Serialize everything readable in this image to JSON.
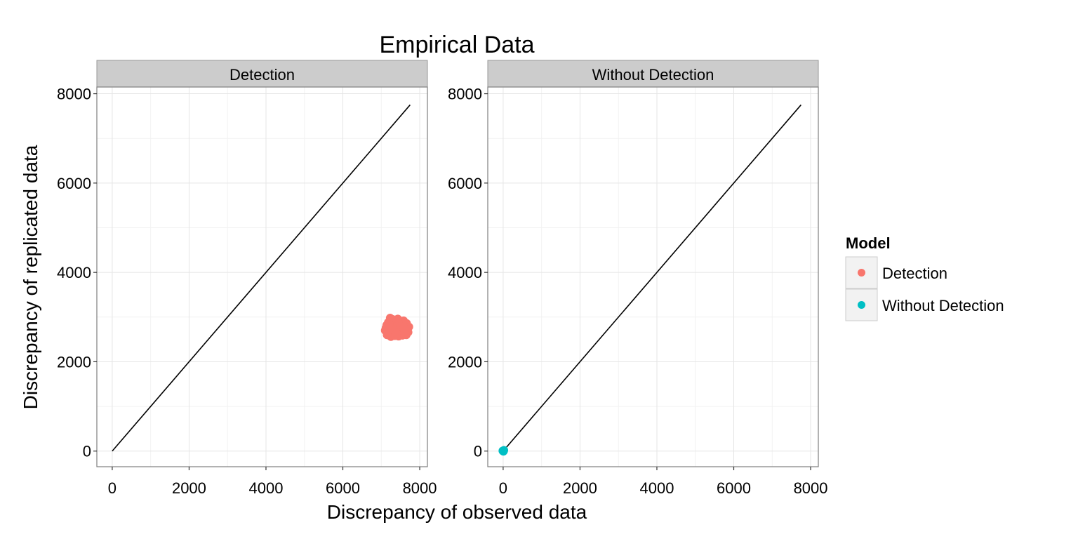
{
  "chart_data": {
    "type": "scatter",
    "title": "Empirical Data",
    "xlabel": "Discrepancy of observed data",
    "ylabel": "Discrepancy of replicated data",
    "xlim": [
      -400,
      8200
    ],
    "ylim": [
      -350,
      8150
    ],
    "xticks": [
      0,
      2000,
      4000,
      6000,
      8000
    ],
    "yticks": [
      0,
      2000,
      4000,
      6000,
      8000
    ],
    "grid": true,
    "legend": {
      "title": "Model",
      "position": "right",
      "entries": [
        {
          "label": "Detection",
          "color": "#F8766D"
        },
        {
          "label": "Without Detection",
          "color": "#00BFC4"
        }
      ]
    },
    "reference_line": {
      "x": [
        0,
        7750
      ],
      "y": [
        0,
        7750
      ],
      "color": "#000000"
    },
    "facets": [
      {
        "label": "Detection",
        "color": "#F8766D",
        "points": [
          [
            7100,
            2700
          ],
          [
            7120,
            2760
          ],
          [
            7140,
            2820
          ],
          [
            7160,
            2650
          ],
          [
            7180,
            2880
          ],
          [
            7200,
            2720
          ],
          [
            7220,
            2600
          ],
          [
            7240,
            2900
          ],
          [
            7260,
            2780
          ],
          [
            7280,
            2680
          ],
          [
            7300,
            2950
          ],
          [
            7320,
            2840
          ],
          [
            7340,
            2620
          ],
          [
            7360,
            2760
          ],
          [
            7380,
            2900
          ],
          [
            7400,
            2700
          ],
          [
            7420,
            2820
          ],
          [
            7440,
            2600
          ],
          [
            7460,
            2880
          ],
          [
            7480,
            2740
          ],
          [
            7500,
            2660
          ],
          [
            7520,
            2860
          ],
          [
            7540,
            2780
          ],
          [
            7560,
            2620
          ],
          [
            7580,
            2920
          ],
          [
            7600,
            2700
          ],
          [
            7620,
            2800
          ],
          [
            7640,
            2640
          ],
          [
            7660,
            2860
          ],
          [
            7680,
            2720
          ],
          [
            7700,
            2660
          ],
          [
            7720,
            2780
          ],
          [
            7250,
            2560
          ],
          [
            7350,
            2580
          ],
          [
            7450,
            2570
          ],
          [
            7550,
            2590
          ],
          [
            7650,
            2600
          ],
          [
            7150,
            2600
          ],
          [
            7230,
            2980
          ],
          [
            7430,
            2960
          ],
          [
            7330,
            2700
          ],
          [
            7490,
            2800
          ],
          [
            7590,
            2760
          ],
          [
            7390,
            2640
          ],
          [
            7210,
            2840
          ]
        ]
      },
      {
        "label": "Without Detection",
        "color": "#00BFC4",
        "points": [
          [
            0,
            0
          ],
          [
            15,
            10
          ],
          [
            -10,
            5
          ],
          [
            8,
            -6
          ],
          [
            20,
            20
          ]
        ]
      }
    ]
  }
}
